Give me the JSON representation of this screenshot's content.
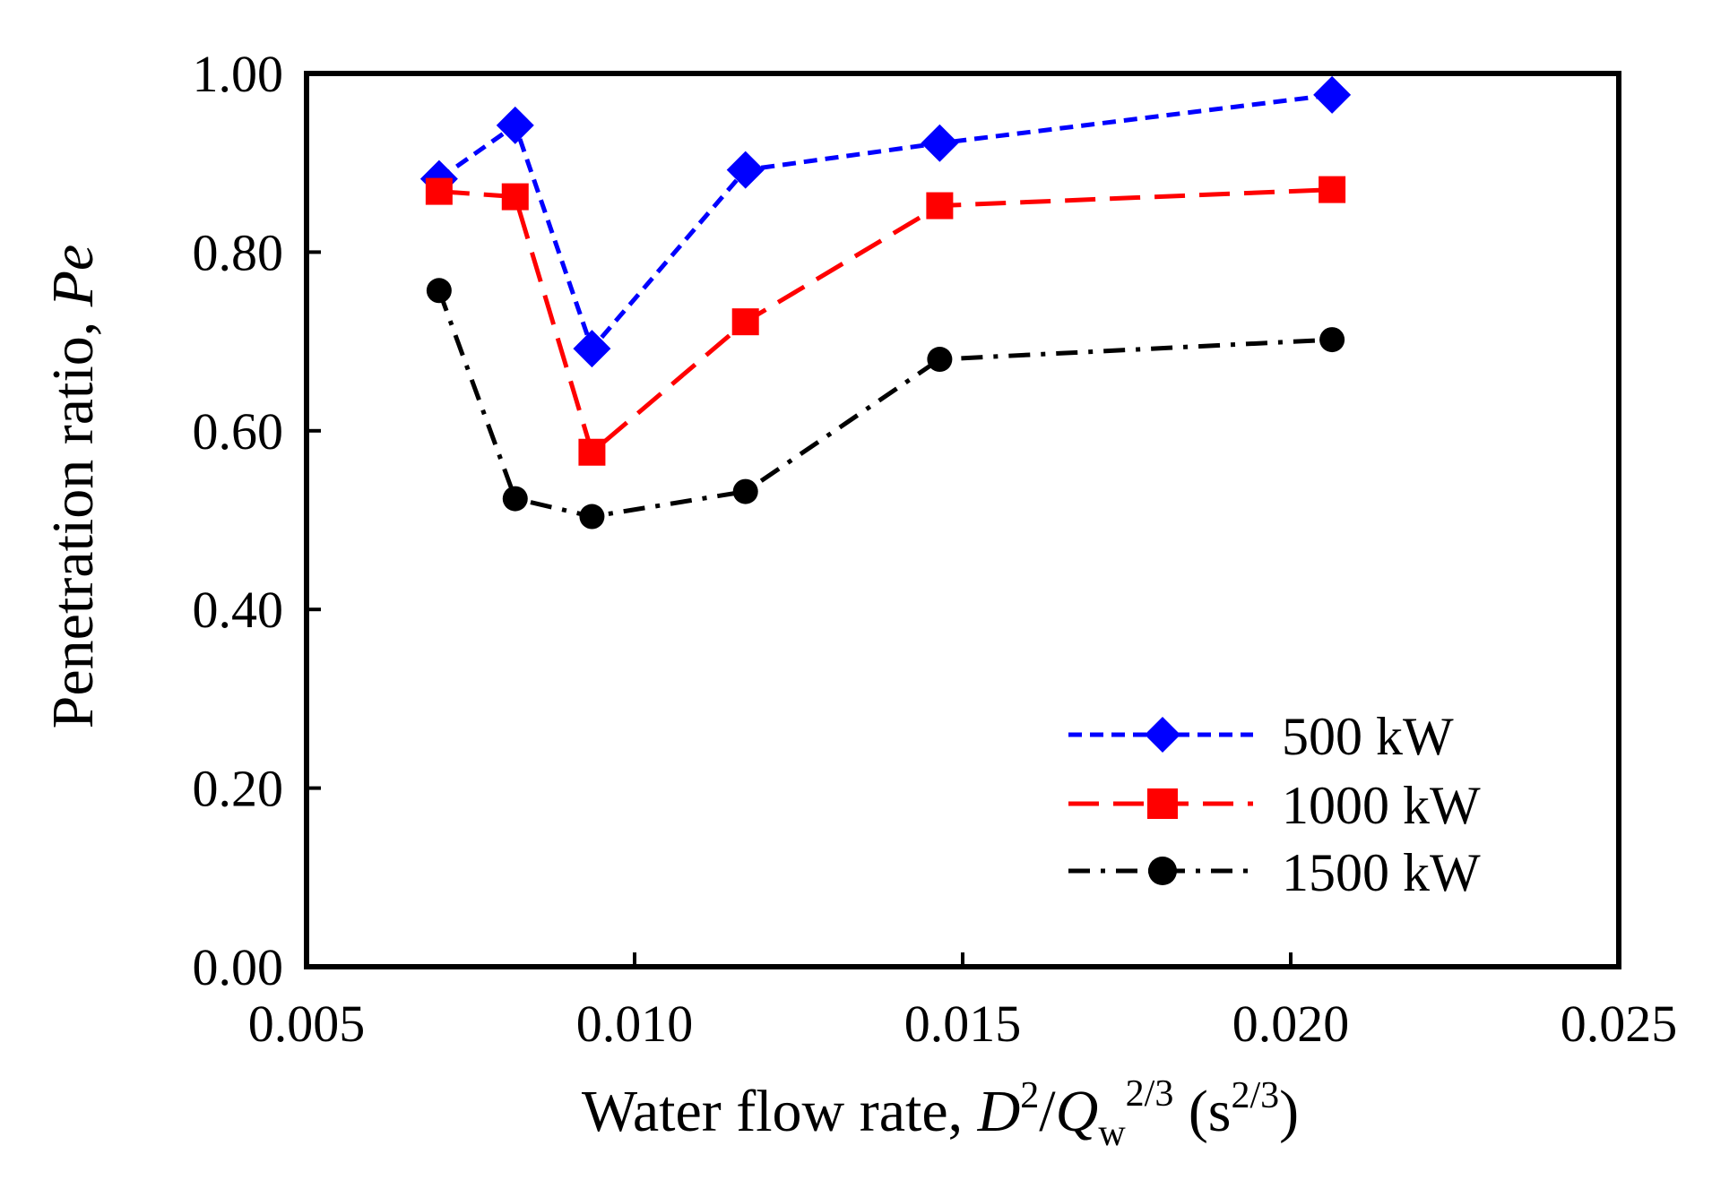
{
  "chart_data": {
    "type": "line",
    "xlabel": {
      "prefix": "Water flow rate, ",
      "D": "D",
      "D_exp": "2",
      "slash": "/",
      "Q": "Q",
      "Q_sub": "w",
      "Q_exp": "2/3",
      "unit_open": " (s",
      "unit_exp": "2/3",
      "unit_close": ")"
    },
    "ylabel": {
      "prefix": "Penetration ratio, ",
      "symbol": "Pe"
    },
    "xlim": [
      0.005,
      0.025
    ],
    "ylim": [
      0.0,
      1.0
    ],
    "x_ticks": [
      0.005,
      0.01,
      0.015,
      0.02,
      0.025
    ],
    "x_tick_labels": [
      "0.005",
      "0.010",
      "0.015",
      "0.020",
      "0.025"
    ],
    "y_ticks": [
      0.0,
      0.2,
      0.4,
      0.6,
      0.8,
      1.0
    ],
    "y_tick_labels": [
      "0.00",
      "0.20",
      "0.40",
      "0.60",
      "0.80",
      "1.00"
    ],
    "grid": false,
    "legend_position": "bottom-right",
    "series": [
      {
        "name": "500 kW",
        "color": "#0000ff",
        "marker": "diamond",
        "dash": "short-dash",
        "x": [
          0.00702,
          0.00818,
          0.00935,
          0.01169,
          0.01465,
          0.02063
        ],
        "y": [
          0.882,
          0.942,
          0.692,
          0.892,
          0.922,
          0.976
        ]
      },
      {
        "name": "1000 kW",
        "color": "#ff0000",
        "marker": "square",
        "dash": "long-dash",
        "x": [
          0.00702,
          0.00818,
          0.00935,
          0.01169,
          0.01465,
          0.02063
        ],
        "y": [
          0.868,
          0.862,
          0.576,
          0.722,
          0.852,
          0.87
        ]
      },
      {
        "name": "1500 kW",
        "color": "#000000",
        "marker": "circle",
        "dash": "dash-dot",
        "x": [
          0.00702,
          0.00818,
          0.00935,
          0.01169,
          0.01465,
          0.02063
        ],
        "y": [
          0.757,
          0.524,
          0.504,
          0.532,
          0.68,
          0.702
        ]
      }
    ]
  }
}
